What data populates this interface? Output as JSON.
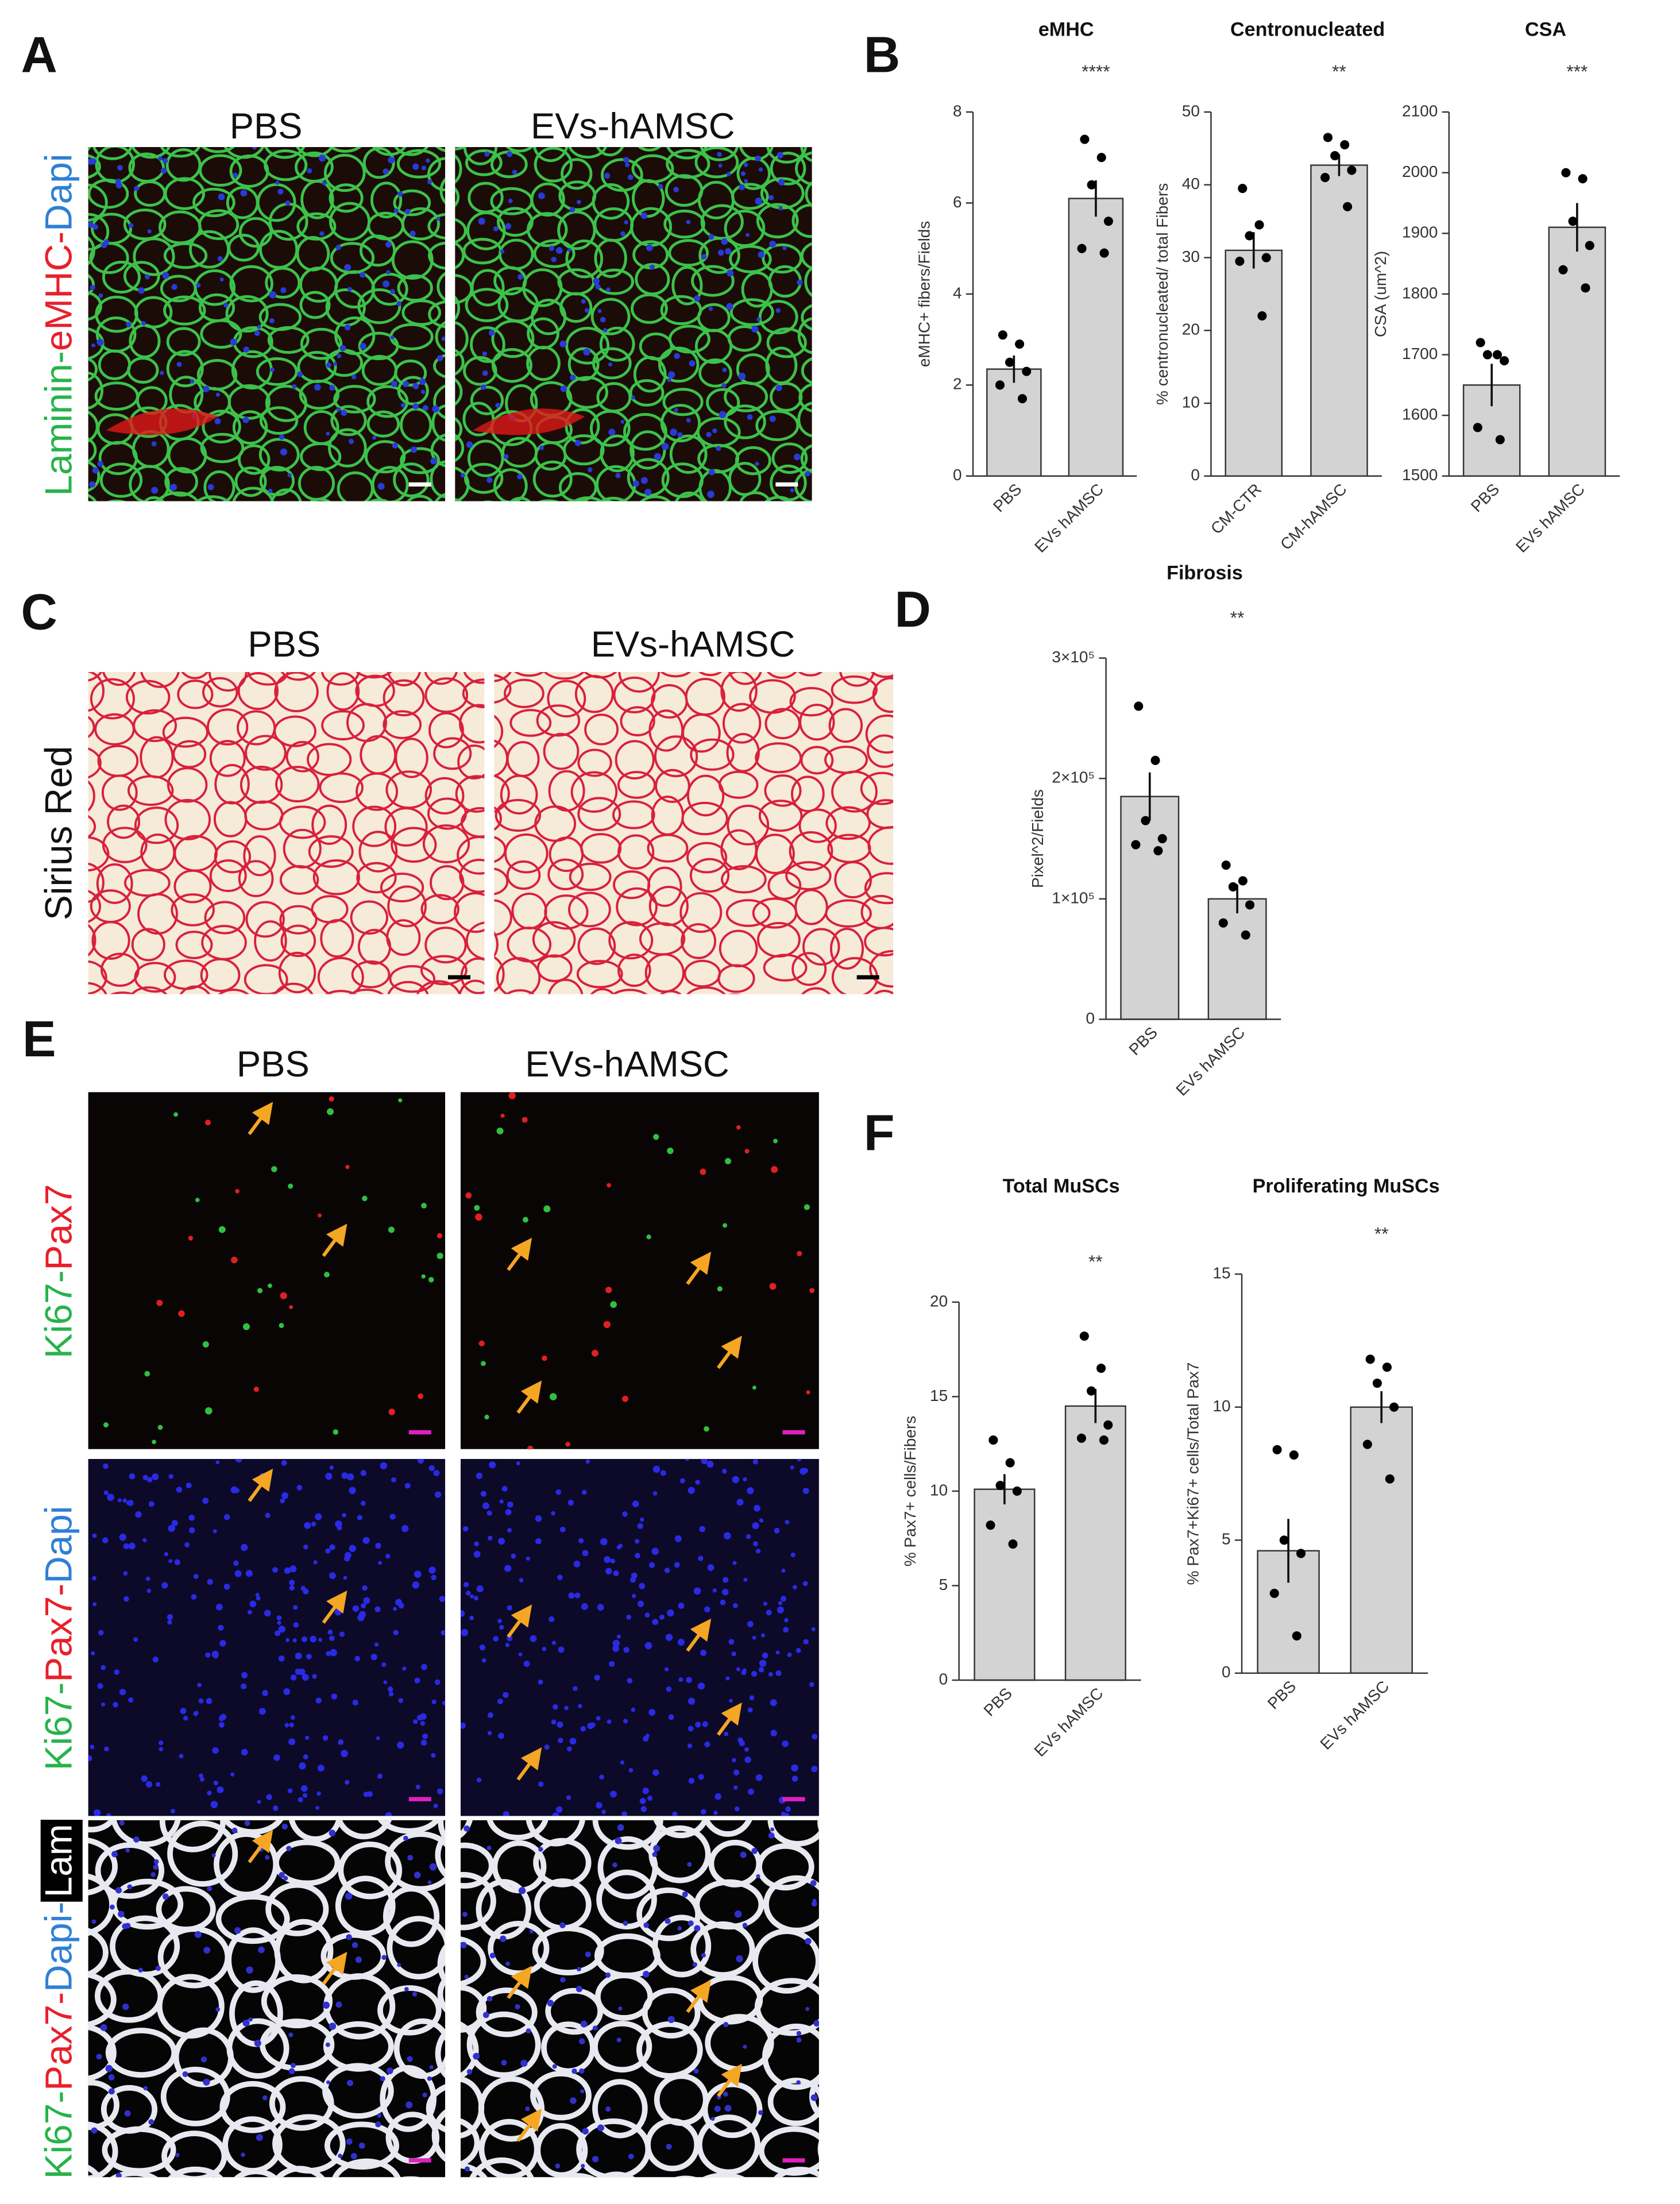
{
  "panels": {
    "A": {
      "letter": "A",
      "columns": [
        "PBS",
        "EVs-hAMSC"
      ],
      "stain": [
        {
          "text": "Laminin-",
          "color": "#27b34b"
        },
        {
          "text": "eMHC-",
          "color": "#e8202a"
        },
        {
          "text": "Dapi",
          "color": "#2f7fd6"
        }
      ]
    },
    "B": {
      "letter": "B"
    },
    "C": {
      "letter": "C",
      "columns": [
        "PBS",
        "EVs-hAMSC"
      ],
      "stain": [
        {
          "text": "Sirius Red",
          "color": "#111111"
        }
      ]
    },
    "D": {
      "letter": "D"
    },
    "E": {
      "letter": "E",
      "columns": [
        "PBS",
        "EVs-hAMSC"
      ],
      "rows": [
        [
          {
            "text": "Ki67-",
            "color": "#27b34b"
          },
          {
            "text": "Pax7",
            "color": "#e8202a"
          }
        ],
        [
          {
            "text": "Ki67-",
            "color": "#27b34b"
          },
          {
            "text": "Pax7-",
            "color": "#e8202a"
          },
          {
            "text": "Dapi",
            "color": "#2f7fd6"
          }
        ],
        [
          {
            "text": "Ki67-",
            "color": "#27b34b"
          },
          {
            "text": "Pax7-",
            "color": "#e8202a"
          },
          {
            "text": "Dapi-",
            "color": "#2f7fd6"
          },
          {
            "text": "Lam",
            "color": "#ffffff",
            "background": "#000000"
          }
        ]
      ]
    },
    "F": {
      "letter": "F"
    }
  },
  "chart_data": [
    {
      "type": "bar",
      "title": "eMHC",
      "y_label": "eMHC+ fibers/Fields",
      "categories": [
        "PBS",
        "EVs hAMSC"
      ],
      "values": [
        2.35,
        6.1
      ],
      "errors": [
        0.3,
        0.4
      ],
      "points": [
        [
          3.1,
          2.9,
          2.5,
          2.3,
          2.0,
          1.7
        ],
        [
          7.4,
          7.0,
          6.4,
          5.6,
          5.0,
          4.9
        ]
      ],
      "significance": "****",
      "color": "#d3d3d3",
      "point_color": "#000000",
      "ylim": [
        0,
        8
      ],
      "yticks": [
        0,
        2,
        4,
        6,
        8
      ]
    },
    {
      "type": "bar",
      "title": "Centronucleated",
      "y_label": "% centronucleated/ total Fibers",
      "categories": [
        "CM-CTR",
        "CM-hAMSC"
      ],
      "values": [
        31,
        42.7
      ],
      "errors": [
        2.5,
        1.5
      ],
      "points": [
        [
          39.5,
          34.5,
          33,
          30,
          29.5,
          22
        ],
        [
          46.5,
          45.5,
          44,
          42,
          41,
          37
        ]
      ],
      "significance": "**",
      "color": "#d3d3d3",
      "point_color": "#000000",
      "ylim": [
        0,
        50
      ],
      "yticks": [
        0,
        10,
        20,
        30,
        40,
        50
      ]
    },
    {
      "type": "bar",
      "title": "CSA",
      "y_label": "CSA (um^2)",
      "categories": [
        "PBS",
        "EVs hAMSC"
      ],
      "values": [
        1650,
        1910
      ],
      "errors": [
        35,
        40
      ],
      "points": [
        [
          1720,
          1700,
          1700,
          1690,
          1580,
          1560
        ],
        [
          2000,
          1990,
          1920,
          1880,
          1840,
          1810
        ]
      ],
      "significance": "***",
      "color": "#d3d3d3",
      "point_color": "#000000",
      "ylim": [
        1500,
        2100
      ],
      "yticks": [
        1500,
        1600,
        1700,
        1800,
        1900,
        2000,
        2100
      ]
    },
    {
      "type": "bar",
      "title": "Fibrosis",
      "y_label": "Pixel^2/Fields",
      "categories": [
        "PBS",
        "EVs hAMSC"
      ],
      "values": [
        185000,
        100000
      ],
      "errors": [
        20000,
        12000
      ],
      "points": [
        [
          260000,
          215000,
          165000,
          150000,
          145000,
          140000
        ],
        [
          128000,
          115000,
          110000,
          95000,
          80000,
          70000
        ]
      ],
      "significance": "**",
      "color": "#d3d3d3",
      "point_color": "#000000",
      "ylim": [
        0,
        300000
      ],
      "yticks": [
        0,
        {
          "value": 100000,
          "label": "1×10⁵"
        },
        {
          "value": 200000,
          "label": "2×10⁵"
        },
        {
          "value": 300000,
          "label": "3×10⁵"
        }
      ]
    },
    {
      "type": "bar",
      "title": "Total MuSCs",
      "y_label": "% Pax7+ cells/Fibers",
      "categories": [
        "PBS",
        "EVs hAMSC"
      ],
      "values": [
        10.1,
        14.5
      ],
      "errors": [
        0.8,
        0.9
      ],
      "points": [
        [
          12.7,
          11.5,
          10.3,
          10.0,
          8.2,
          7.2
        ],
        [
          18.2,
          16.5,
          15.3,
          13.5,
          12.8,
          12.7
        ]
      ],
      "significance": "**",
      "color": "#d3d3d3",
      "point_color": "#000000",
      "ylim": [
        0,
        20
      ],
      "yticks": [
        0,
        5,
        10,
        15,
        20
      ]
    },
    {
      "type": "bar",
      "title": "Proliferating MuSCs",
      "y_label": "% Pax7+Ki67+ cells/Total Pax7",
      "categories": [
        "PBS",
        "EVs hAMSC"
      ],
      "values": [
        4.6,
        10.0
      ],
      "errors": [
        1.2,
        0.6
      ],
      "points": [
        [
          8.4,
          8.2,
          5.0,
          4.5,
          3.0,
          1.4
        ],
        [
          11.8,
          11.5,
          10.9,
          10.0,
          8.6,
          7.3
        ]
      ],
      "significance": "**",
      "color": "#d3d3d3",
      "point_color": "#000000",
      "ylim": [
        0,
        15
      ],
      "yticks": [
        0,
        5,
        10,
        15
      ]
    }
  ]
}
